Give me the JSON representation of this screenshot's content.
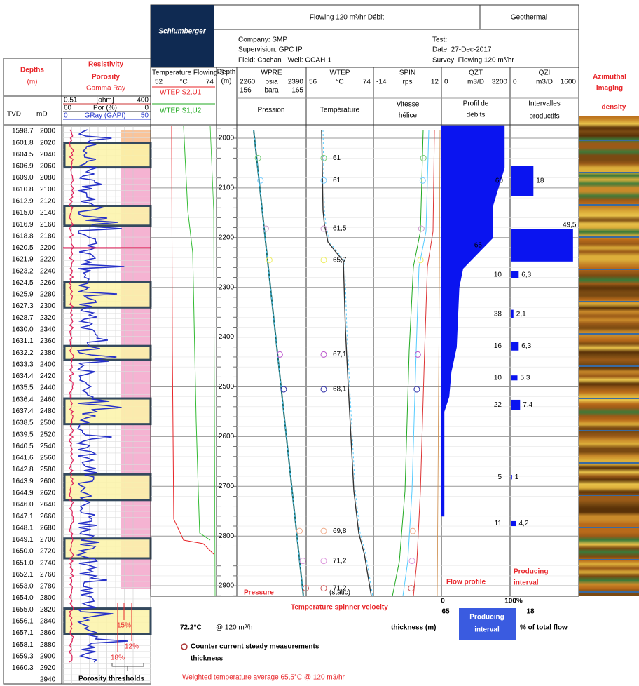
{
  "header": {
    "logo": "Schlumberger",
    "title": "Flowing 120 m³/hr Débit",
    "category": "Geothermal",
    "company": "Company: SMP",
    "supervision": "Supervision: GPC IP",
    "field": "Field: Cachan - Well: GCAH-1",
    "test": "Test:",
    "date": "Date: 27-Dec-2017",
    "survey": "Survey: Flowing 120 m³/hr"
  },
  "left_panel": {
    "depths_title": "Depths",
    "depths_unit": "(m)",
    "resistivity": "Resistivity",
    "porosity": "Porosity",
    "gamma_ray": "Gamma Ray",
    "scales": [
      [
        "0.51",
        "[ohm]",
        "400"
      ],
      [
        "60",
        "Por (%)",
        "0"
      ],
      [
        "0",
        "GRay (GAPI)",
        "50"
      ]
    ],
    "tvd_label": "TVD",
    "md_label": "mD",
    "rows": [
      {
        "tvd": "1598.7",
        "md": 2000
      },
      {
        "tvd": "1601.8",
        "md": 2020
      },
      {
        "tvd": "1604.5",
        "md": 2040
      },
      {
        "tvd": "1606.9",
        "md": 2060
      },
      {
        "tvd": "1609.0",
        "md": 2080
      },
      {
        "tvd": "1610.8",
        "md": 2100
      },
      {
        "tvd": "1612.9",
        "md": 2120
      },
      {
        "tvd": "1615.0",
        "md": 2140
      },
      {
        "tvd": "1616.9",
        "md": 2160
      },
      {
        "tvd": "1618.8",
        "md": 2180
      },
      {
        "tvd": "1620.5",
        "md": 2200
      },
      {
        "tvd": "1621.9",
        "md": 2220
      },
      {
        "tvd": "1623.2",
        "md": 2240
      },
      {
        "tvd": "1624.5",
        "md": 2260
      },
      {
        "tvd": "1625.9",
        "md": 2280
      },
      {
        "tvd": "1627.3",
        "md": 2300
      },
      {
        "tvd": "1628.7",
        "md": 2320
      },
      {
        "tvd": "1630.0",
        "md": 2340
      },
      {
        "tvd": "1631.1",
        "md": 2360
      },
      {
        "tvd": "1632.2",
        "md": 2380
      },
      {
        "tvd": "1633.3",
        "md": 2400
      },
      {
        "tvd": "1634.4",
        "md": 2420
      },
      {
        "tvd": "1635.5",
        "md": 2440
      },
      {
        "tvd": "1636.4",
        "md": 2460
      },
      {
        "tvd": "1637.4",
        "md": 2480
      },
      {
        "tvd": "1638.5",
        "md": 2500
      },
      {
        "tvd": "1639.5",
        "md": 2520
      },
      {
        "tvd": "1640.5",
        "md": 2540
      },
      {
        "tvd": "1641.6",
        "md": 2560
      },
      {
        "tvd": "1642.8",
        "md": 2580
      },
      {
        "tvd": "1643.9",
        "md": 2600
      },
      {
        "tvd": "1644.9",
        "md": 2620
      },
      {
        "tvd": "1646.0",
        "md": 2640
      },
      {
        "tvd": "1647.1",
        "md": 2660
      },
      {
        "tvd": "1648.1",
        "md": 2680
      },
      {
        "tvd": "1649.1",
        "md": 2700
      },
      {
        "tvd": "1650.0",
        "md": 2720
      },
      {
        "tvd": "1651.0",
        "md": 2740
      },
      {
        "tvd": "1652.1",
        "md": 2760
      },
      {
        "tvd": "1653.0",
        "md": 2780
      },
      {
        "tvd": "1654.0",
        "md": 2800
      },
      {
        "tvd": "1655.0",
        "md": 2820
      },
      {
        "tvd": "1656.1",
        "md": 2840
      },
      {
        "tvd": "1657.1",
        "md": 2860
      },
      {
        "tvd": "1658.1",
        "md": 2880
      },
      {
        "tvd": "1659.3",
        "md": 2900
      },
      {
        "tvd": "1660.3",
        "md": 2920
      },
      {
        "md": 2940
      }
    ],
    "thresholds": [
      "15%",
      "12%",
      "18%"
    ],
    "thresholds_title": "Porosity thresholds"
  },
  "tracks": {
    "temp_flowing": {
      "title": "Temperature Flowing-S",
      "min": "52",
      "unit": "°C",
      "max": "74",
      "curve1": "WTEP  S2,U1",
      "curve2": "WTEP  S1,U2"
    },
    "depth": {
      "title": "Depth",
      "unit": "(m)",
      "ticks": [
        2000,
        2100,
        2200,
        2300,
        2400,
        2500,
        2600,
        2700,
        2800,
        2900
      ]
    },
    "pressure": {
      "mnemonic": "WPRE",
      "scale1": [
        "2260",
        "psia",
        "2390"
      ],
      "scale2": [
        "156",
        "bara",
        "165"
      ],
      "title": "Pression"
    },
    "temperature": {
      "mnemonic": "WTEP",
      "scale": [
        "56",
        "°C",
        "74"
      ],
      "title": "Température",
      "readings": [
        {
          "depth": 2040,
          "label": "61"
        },
        {
          "depth": 2085,
          "label": "61"
        },
        {
          "depth": 2182,
          "label": "61,5"
        },
        {
          "depth": 2245,
          "label": "65,7"
        },
        {
          "depth": 2435,
          "label": "67,1"
        },
        {
          "depth": 2505,
          "label": "68,1"
        },
        {
          "depth": 2790,
          "label": "69,8"
        },
        {
          "depth": 2850,
          "label": "71,2"
        },
        {
          "depth": 2905,
          "label": "71,2"
        }
      ],
      "static": "(static)"
    },
    "spinner": {
      "mnemonic": "SPIN",
      "scale": [
        "-14",
        "rps",
        "12"
      ],
      "title1": "Vitesse",
      "title2": "hélice"
    },
    "flow": {
      "mnemonic": "QZT",
      "scale": [
        "0",
        "m3/D",
        "3200"
      ],
      "title1": "Profil de",
      "title2": "débits",
      "xlim": [
        0,
        3200
      ],
      "depths": [
        1975,
        2060,
        2135,
        2200,
        2262,
        2300,
        2420,
        2470,
        2520,
        2550,
        2760,
        2760
      ],
      "rates": [
        2930,
        2930,
        2400,
        2400,
        1000,
        820,
        700,
        450,
        350,
        120,
        120,
        0
      ]
    },
    "intervals": {
      "mnemonic": "QZI",
      "scale": [
        "0",
        "m3/D",
        "1600"
      ],
      "title1": "Intervalles",
      "title2": "productifs",
      "xlim": [
        0,
        1600
      ],
      "items": [
        {
          "top": 2056,
          "base": 2116,
          "thickness": "60",
          "percent": 18,
          "percent_label": "18"
        },
        {
          "top": 2183,
          "base": 2248,
          "thickness": "65",
          "percent": 49.5,
          "percent_label": "49,5"
        },
        {
          "top": 2268,
          "base": 2282,
          "thickness": "10",
          "percent": 6.3,
          "percent_label": "6,3"
        },
        {
          "top": 2345,
          "base": 2362,
          "thickness": "38",
          "percent": 2.1,
          "percent_label": "2,1"
        },
        {
          "top": 2409,
          "base": 2427,
          "thickness": "16",
          "percent": 6.3,
          "percent_label": "6,3"
        },
        {
          "top": 2477,
          "base": 2487,
          "thickness": "10",
          "percent": 5.3,
          "percent_label": "5,3"
        },
        {
          "top": 2526,
          "base": 2547,
          "thickness": "22",
          "percent": 7.4,
          "percent_label": "7,4"
        },
        {
          "top": 2677,
          "base": 2686,
          "thickness": "5",
          "percent": 1,
          "percent_label": "1"
        },
        {
          "top": 2770,
          "base": 2780,
          "thickness": "11",
          "percent": 4.2,
          "percent_label": "4,2"
        }
      ]
    },
    "image": {
      "title1": "Azimuthal",
      "title2": "imaging",
      "subtitle": "density"
    }
  },
  "legend": {
    "pressure": "Pressure",
    "temp_spinner": "Temperature spinner velocity",
    "flow_profile": "Flow profile",
    "producing1": "Producing",
    "producing2": "interval",
    "zero": "0",
    "hundred": "100%",
    "thickness_example": "65",
    "percent_example": "18",
    "thickness_label": "thickness (m)",
    "box1": "Producing",
    "box2": "interval",
    "percent_label": "% of total flow",
    "temp_value": "72.2°C",
    "temp_rate": "@ 120 m³/h",
    "counter1": "Counter current steady measurements",
    "counter2": "thickness",
    "weighted": "Weighted temperature average  65,5°C @ 120 m3/hr"
  }
}
